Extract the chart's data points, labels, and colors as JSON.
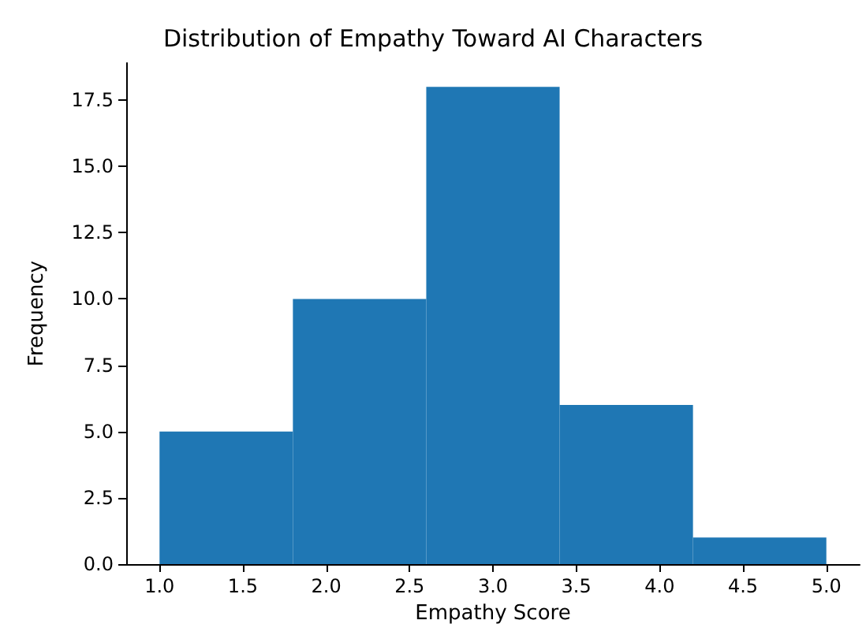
{
  "chart_data": {
    "type": "histogram",
    "title": "Distribution of Empathy Toward AI Characters",
    "xlabel": "Empathy Score",
    "ylabel": "Frequency",
    "bins": [
      1.0,
      1.8,
      2.6,
      3.4,
      4.2,
      5.0
    ],
    "values": [
      5,
      10,
      18,
      6,
      1
    ],
    "color": "#1f77b4",
    "xlim": [
      0.8,
      5.2
    ],
    "xticks": [
      {
        "value": 1.0,
        "label": "1.0"
      },
      {
        "value": 1.5,
        "label": "1.5"
      },
      {
        "value": 2.0,
        "label": "2.0"
      },
      {
        "value": 2.5,
        "label": "2.5"
      },
      {
        "value": 3.0,
        "label": "3.0"
      },
      {
        "value": 3.5,
        "label": "3.5"
      },
      {
        "value": 4.0,
        "label": "4.0"
      },
      {
        "value": 4.5,
        "label": "4.5"
      },
      {
        "value": 5.0,
        "label": "5.0"
      }
    ],
    "ylim": [
      0,
      18.9
    ],
    "yticks": [
      {
        "value": 0,
        "label": "0.0"
      },
      {
        "value": 2.5,
        "label": "2.5"
      },
      {
        "value": 5,
        "label": "5.0"
      },
      {
        "value": 7.5,
        "label": "7.5"
      },
      {
        "value": 10,
        "label": "10.0"
      },
      {
        "value": 12.5,
        "label": "12.5"
      },
      {
        "value": 15,
        "label": "15.0"
      },
      {
        "value": 17.5,
        "label": "17.5"
      }
    ],
    "grid": false
  }
}
